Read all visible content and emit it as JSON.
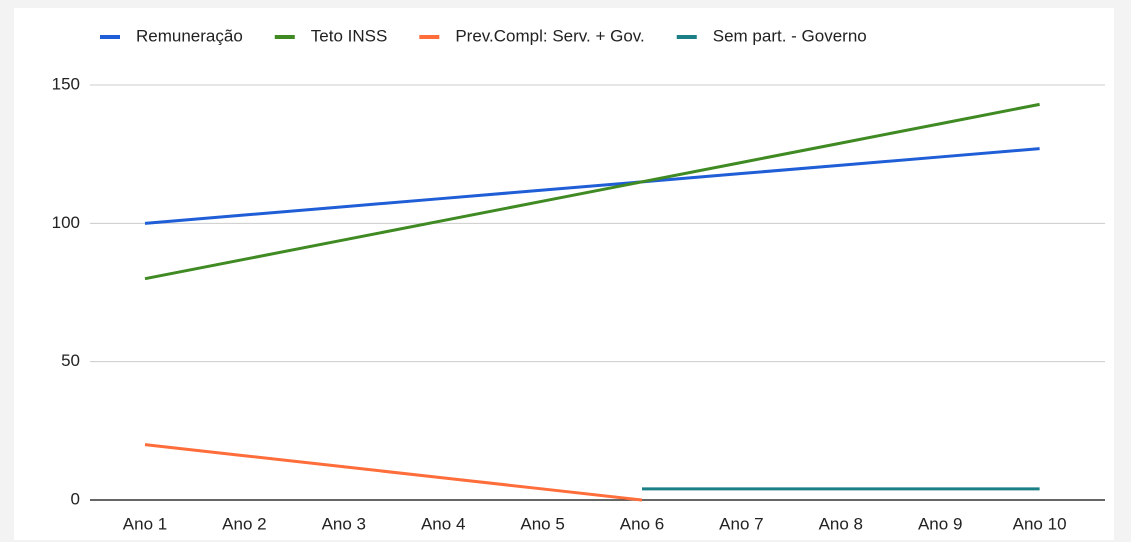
{
  "chart_data": {
    "type": "line",
    "categories": [
      "Ano 1",
      "Ano 2",
      "Ano 3",
      "Ano 4",
      "Ano 5",
      "Ano 6",
      "Ano 7",
      "Ano 8",
      "Ano 9",
      "Ano 10"
    ],
    "series": [
      {
        "name": "Remuneração",
        "color": "#1f5ed6",
        "values": [
          100,
          103,
          106,
          109,
          112,
          115,
          118,
          121,
          124,
          127
        ]
      },
      {
        "name": "Teto INSS",
        "color": "#3f8a22",
        "values": [
          80,
          87,
          94,
          101,
          108,
          115,
          122,
          129,
          136,
          143
        ]
      },
      {
        "name": "Prev.Compl: Serv. + Gov.",
        "color": "#ff6d3a",
        "values": [
          20,
          16,
          12,
          8,
          4,
          0,
          null,
          null,
          null,
          null
        ]
      },
      {
        "name": "Sem part. - Governo",
        "color": "#1b7f86",
        "values": [
          null,
          null,
          null,
          null,
          null,
          4,
          4,
          4,
          4,
          4
        ]
      }
    ],
    "ylim": [
      0,
      150
    ],
    "yticks": [
      0,
      50,
      100,
      150
    ],
    "grid": true,
    "legend": "top"
  }
}
